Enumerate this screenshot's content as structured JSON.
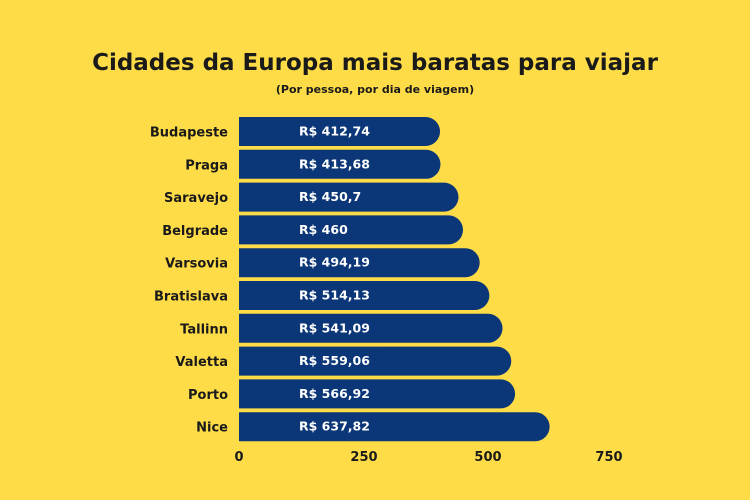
{
  "chart_data": {
    "type": "bar",
    "orientation": "horizontal",
    "title": "Cidades da Europa mais baratas para viajar",
    "subtitle": "(Por pessoa, por dia de viagem)",
    "categories": [
      "Budapeste",
      "Praga",
      "Saravejo",
      "Belgrade",
      "Varsovia",
      "Bratislava",
      "Tallinn",
      "Valetta",
      "Porto",
      "Nice"
    ],
    "values": [
      412.74,
      413.68,
      450.7,
      460,
      494.19,
      514.13,
      541.09,
      559.06,
      566.92,
      637.82
    ],
    "data_labels": [
      "R$ 412,74",
      "R$ 413,68",
      "R$ 450,7",
      "R$ 460",
      "R$ 494,19",
      "R$ 514,13",
      "R$ 541,09",
      "R$ 559,06",
      "R$ 566,92",
      "R$ 637,82"
    ],
    "xticks": [
      "0",
      "250",
      "500",
      "750"
    ],
    "xlim": [
      0,
      750
    ],
    "grid": false,
    "colors": {
      "bar": "#0b3677",
      "background": "#fedc48",
      "text": "#1a1a1a",
      "label": "#ffffff"
    }
  }
}
